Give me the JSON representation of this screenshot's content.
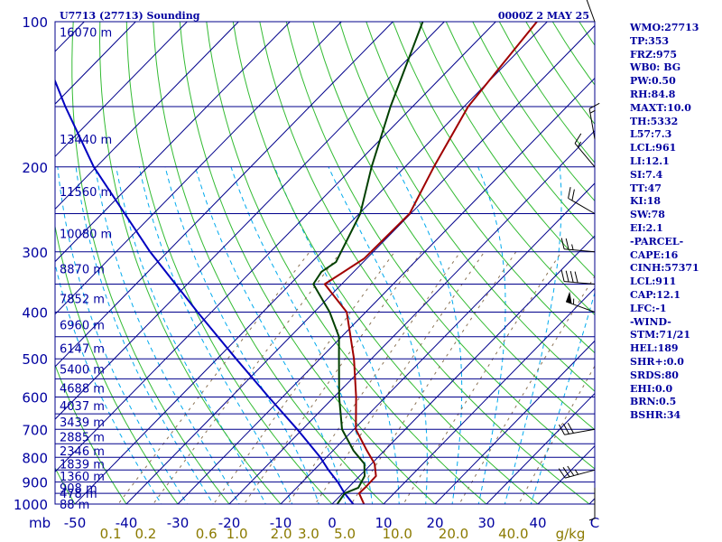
{
  "header": {
    "station": "U7713 (27713) Sounding",
    "time": "0000Z  2 MAY 25"
  },
  "indices": [
    "WMO:27713",
    "TP:353",
    "FRZ:975",
    "WB0: BG",
    "PW:0.50",
    "RH:84.8",
    "MAXT:10.0",
    "TH:5332",
    "L57:7.3",
    "LCL:961",
    "LI:12.1",
    "SI:7.4",
    "TT:47",
    "KI:18",
    "SW:78",
    "EI:2.1",
    "-PARCEL-",
    "CAPE:16",
    "CINH:57371",
    "LCL:911",
    "CAP:12.1",
    "LFC:-1",
    "-WIND-",
    "STM:71/21",
    "HEL:189",
    "SHR+:0.0",
    "SRDS:80",
    "EHI:0.0",
    "BRN:0.5",
    "BSHR:34"
  ],
  "colors": {
    "isobar": "#00008b",
    "isotherm": "#00008b",
    "dry_adiabat": "#33bb33",
    "moist_adiabat": "#00aaee",
    "mixing_ratio": "#8b7355",
    "temperature": "#a00000",
    "dewpoint": "#004000",
    "parcel": "#0000c0",
    "axis_text": "#0000a0",
    "mixing_text": "#8b7a00",
    "barb": "#000000"
  },
  "chart_data": {
    "type": "skew-t",
    "x_unit": "C",
    "y_unit": "mb",
    "ylim": [
      1000,
      100
    ],
    "xlim": [
      -50,
      50
    ],
    "pressure_ticks": [
      "100",
      "200",
      "300",
      "400",
      "500",
      "600",
      "700",
      "800",
      "900",
      "1000"
    ],
    "temperature_ticks": [
      "-50",
      "-40",
      "-30",
      "-20",
      "-10",
      "0",
      "10",
      "20",
      "30",
      "40",
      "C"
    ],
    "mixing_ratio_unit": "g/kg",
    "mixing_ratio_ticks": [
      "0.1",
      "0.2",
      "0.6",
      "1.0",
      "2.0",
      "3.0",
      "5.0",
      "10.0",
      "20.0",
      "40.0"
    ],
    "height_labels": [
      {
        "p": 1000,
        "text": "88 m"
      },
      {
        "p": 950,
        "text": "478 m"
      },
      {
        "p": 925,
        "text": "908 m"
      },
      {
        "p": 875,
        "text": "1360 m"
      },
      {
        "p": 825,
        "text": "1839 m"
      },
      {
        "p": 775,
        "text": "2346 m"
      },
      {
        "p": 725,
        "text": "2885 m"
      },
      {
        "p": 675,
        "text": "3439 m"
      },
      {
        "p": 625,
        "text": "4037 m"
      },
      {
        "p": 575,
        "text": "4688 m"
      },
      {
        "p": 525,
        "text": "5400 m"
      },
      {
        "p": 475,
        "text": "6147 m"
      },
      {
        "p": 425,
        "text": "6960 m"
      },
      {
        "p": 375,
        "text": "7852 m"
      },
      {
        "p": 325,
        "text": "8870 m"
      },
      {
        "p": 275,
        "text": "10080 m"
      },
      {
        "p": 225,
        "text": "11560 m"
      },
      {
        "p": 175,
        "text": "13440 m"
      },
      {
        "p": 105,
        "text": "16070 m"
      }
    ],
    "temperature": [
      {
        "p": 1000,
        "t": 6.2
      },
      {
        "p": 950,
        "t": 3.2
      },
      {
        "p": 925,
        "t": 3.3
      },
      {
        "p": 875,
        "t": 3.2
      },
      {
        "p": 825,
        "t": 0.6
      },
      {
        "p": 775,
        "t": -3.4
      },
      {
        "p": 700,
        "t": -9.6
      },
      {
        "p": 600,
        "t": -15.7
      },
      {
        "p": 500,
        "t": -23.4
      },
      {
        "p": 400,
        "t": -33.7
      },
      {
        "p": 350,
        "t": -43.3
      },
      {
        "p": 310,
        "t": -40.5
      },
      {
        "p": 250,
        "t": -40.2
      },
      {
        "p": 200,
        "t": -44.4
      },
      {
        "p": 150,
        "t": -49.2
      },
      {
        "p": 100,
        "t": -52.0
      }
    ],
    "dewpoint": [
      {
        "p": 1000,
        "t": 1.0
      },
      {
        "p": 950,
        "t": 0.4
      },
      {
        "p": 925,
        "t": 2.0
      },
      {
        "p": 875,
        "t": 1.0
      },
      {
        "p": 825,
        "t": -1.4
      },
      {
        "p": 775,
        "t": -6.0
      },
      {
        "p": 700,
        "t": -12.3
      },
      {
        "p": 600,
        "t": -19.0
      },
      {
        "p": 500,
        "t": -26.3
      },
      {
        "p": 450,
        "t": -30.5
      },
      {
        "p": 400,
        "t": -37.0
      },
      {
        "p": 350,
        "t": -45.5
      },
      {
        "p": 330,
        "t": -46.3
      },
      {
        "p": 315,
        "t": -45.3
      },
      {
        "p": 250,
        "t": -49.8
      },
      {
        "p": 200,
        "t": -56.5
      },
      {
        "p": 150,
        "t": -64.3
      },
      {
        "p": 100,
        "t": -74.2
      }
    ],
    "parcel": [
      {
        "p": 1000,
        "t": 4.1
      },
      {
        "p": 950,
        "t": 0.4
      },
      {
        "p": 900,
        "t": -3.1
      },
      {
        "p": 850,
        "t": -7.2
      },
      {
        "p": 800,
        "t": -11.2
      },
      {
        "p": 700,
        "t": -21.0
      },
      {
        "p": 600,
        "t": -32.7
      },
      {
        "p": 500,
        "t": -46.3
      },
      {
        "p": 400,
        "t": -62.7
      },
      {
        "p": 300,
        "t": -83.4
      },
      {
        "p": 200,
        "t": -110.5
      },
      {
        "p": 150,
        "t": -127.5
      },
      {
        "p": 118,
        "t": -141.0
      }
    ],
    "wind_barbs": [
      {
        "p": 925,
        "dir": 180,
        "speed_kt": 5
      },
      {
        "p": 850,
        "dir": 255,
        "speed_kt": 35
      },
      {
        "p": 700,
        "dir": 260,
        "speed_kt": 30
      },
      {
        "p": 400,
        "dir": 290,
        "speed_kt": 55
      },
      {
        "p": 350,
        "dir": 275,
        "speed_kt": 40
      },
      {
        "p": 300,
        "dir": 275,
        "speed_kt": 25
      },
      {
        "p": 250,
        "dir": 300,
        "speed_kt": 20
      },
      {
        "p": 200,
        "dir": 320,
        "speed_kt": 15
      },
      {
        "p": 175,
        "dir": 350,
        "speed_kt": 15
      },
      {
        "p": 100,
        "dir": 340,
        "speed_kt": 10
      }
    ]
  }
}
